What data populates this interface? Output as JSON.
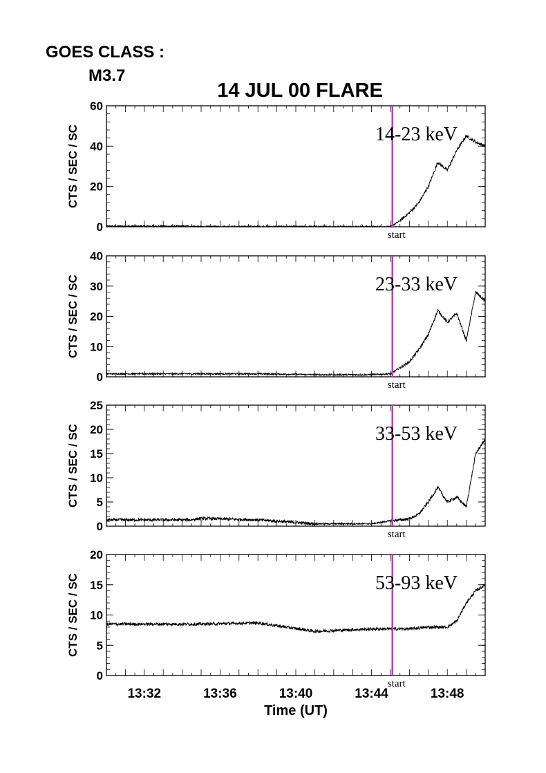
{
  "header": {
    "goes_label": "GOES CLASS :",
    "goes_class": "M3.7",
    "title": "14 JUL 00 FLARE"
  },
  "x_axis": {
    "label": "Time (UT)",
    "range": [
      "13:30",
      "13:50"
    ],
    "ticks": [
      "13:32",
      "13:36",
      "13:40",
      "13:44",
      "13:48"
    ]
  },
  "marker": {
    "time": "13:45.1",
    "label": "start",
    "color": "#cc33cc"
  },
  "chart_data": [
    {
      "type": "line",
      "band": "14-23 keV",
      "ylabel": "CTS / SEC / SC",
      "ylim": [
        0,
        60
      ],
      "yticks": [
        0,
        20,
        40,
        60
      ],
      "xlim": [
        "13:30",
        "13:50"
      ],
      "x": [
        "13:30",
        "13:34.4",
        "13:35",
        "13:44",
        "13:45",
        "13:45.5",
        "13:46",
        "13:46.5",
        "13:47",
        "13:47.5",
        "13:48",
        "13:48.5",
        "13:49",
        "13:49.5",
        "13:50"
      ],
      "y": [
        0.3,
        0.3,
        0.1,
        0.1,
        0.0,
        3,
        7,
        12,
        20,
        32,
        28,
        38,
        45,
        42,
        40
      ]
    },
    {
      "type": "line",
      "band": "23-33 keV",
      "ylabel": "CTS / SEC / SC",
      "ylim": [
        0,
        40
      ],
      "yticks": [
        0,
        10,
        20,
        30,
        40
      ],
      "xlim": [
        "13:30",
        "13:50"
      ],
      "x": [
        "13:30",
        "13:34.4",
        "13:35",
        "13:38",
        "13:41",
        "13:44",
        "13:45",
        "13:45.5",
        "13:46",
        "13:46.5",
        "13:47",
        "13:47.5",
        "13:48",
        "13:48.5",
        "13:49",
        "13:49.5",
        "13:50"
      ],
      "y": [
        1,
        1,
        1,
        1,
        0.7,
        0.7,
        1,
        3,
        5,
        9,
        14,
        22,
        18,
        21,
        12,
        28,
        25
      ]
    },
    {
      "type": "line",
      "band": "33-53 keV",
      "ylabel": "CTS / SEC / SC",
      "ylim": [
        0,
        25
      ],
      "yticks": [
        0,
        5,
        10,
        15,
        20,
        25
      ],
      "xlim": [
        "13:30",
        "13:50"
      ],
      "x": [
        "13:30",
        "13:34.4",
        "13:35",
        "13:38",
        "13:41",
        "13:44",
        "13:45",
        "13:46",
        "13:46.5",
        "13:47",
        "13:47.5",
        "13:48",
        "13:48.5",
        "13:49",
        "13:49.5",
        "13:50"
      ],
      "y": [
        1.3,
        1.3,
        1.6,
        1.3,
        0.5,
        0.5,
        1.1,
        1.5,
        2.5,
        5,
        8,
        5,
        6,
        4,
        15,
        18
      ]
    },
    {
      "type": "line",
      "band": "53-93 keV",
      "ylabel": "CTS / SEC / SC",
      "ylim": [
        0,
        20
      ],
      "yticks": [
        0,
        5,
        10,
        15,
        20
      ],
      "xlim": [
        "13:30",
        "13:50"
      ],
      "x": [
        "13:30",
        "13:34.4",
        "13:35",
        "13:38",
        "13:41",
        "13:44",
        "13:45",
        "13:46",
        "13:47",
        "13:48",
        "13:48.5",
        "13:49",
        "13:49.5",
        "13:50"
      ],
      "y": [
        8.5,
        8.5,
        8.5,
        8.7,
        7.3,
        7.7,
        7.7,
        7.7,
        8,
        8,
        9,
        12,
        14,
        15
      ]
    }
  ]
}
